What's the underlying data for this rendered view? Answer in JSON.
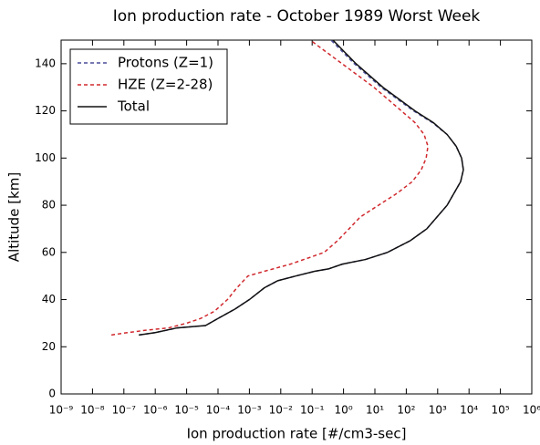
{
  "chart_data": {
    "type": "line",
    "title": "Ion production rate - October 1989 Worst Week",
    "x_label": "Ion production rate [#/cm3-sec]",
    "y_label": "Altitude [km]",
    "x_scale": "log",
    "xlim": [
      1e-09,
      1000000.0
    ],
    "xticks": [
      {
        "value": 1e-09,
        "label": "10⁻⁹"
      },
      {
        "value": 1e-08,
        "label": "10⁻⁸"
      },
      {
        "value": 1e-07,
        "label": "10⁻⁷"
      },
      {
        "value": 1e-06,
        "label": "10⁻⁶"
      },
      {
        "value": 1e-05,
        "label": "10⁻⁵"
      },
      {
        "value": 0.0001,
        "label": "10⁻⁴"
      },
      {
        "value": 0.001,
        "label": "10⁻³"
      },
      {
        "value": 0.01,
        "label": "10⁻²"
      },
      {
        "value": 0.1,
        "label": "10⁻¹"
      },
      {
        "value": 1,
        "label": "10⁰"
      },
      {
        "value": 10,
        "label": "10¹"
      },
      {
        "value": 100,
        "label": "10²"
      },
      {
        "value": 1000,
        "label": "10³"
      },
      {
        "value": 10000,
        "label": "10⁴"
      },
      {
        "value": 100000,
        "label": "10⁵"
      },
      {
        "value": 1000000,
        "label": "10⁶"
      }
    ],
    "ylim": [
      0,
      150
    ],
    "yticks": [
      0,
      20,
      40,
      60,
      80,
      100,
      120,
      140
    ],
    "legend": "upper left",
    "series": [
      {
        "name": "Protons (Z=1)",
        "color": "#4a4f9a",
        "linestyle": "dashed",
        "x": [
          3e-07,
          1e-06,
          5e-06,
          4e-05,
          0.0001,
          0.00035,
          0.001,
          0.003,
          0.008,
          0.03,
          0.12,
          0.33,
          0.9,
          5,
          25,
          135,
          450,
          2000,
          5400,
          6600,
          5800,
          3900,
          2000,
          680,
          170,
          16,
          2.2,
          0.4
        ],
        "values": [
          25,
          26,
          28,
          29,
          32,
          36,
          40,
          45,
          48,
          50,
          52,
          53,
          55,
          57,
          60,
          65,
          70,
          80,
          90,
          95,
          100,
          105,
          110,
          115,
          120,
          130,
          140,
          150
        ]
      },
      {
        "name": "HZE (Z=2-28)",
        "color": "#d0282d",
        "linestyle": "dashed",
        "x": [
          4e-08,
          1.3e-07,
          5e-07,
          2.7e-06,
          1e-05,
          2.8e-05,
          7.6e-05,
          0.0002,
          0.0004,
          0.0009,
          0.003,
          0.02,
          0.09,
          0.24,
          0.65,
          1.5,
          3.4,
          13,
          50,
          155,
          300,
          430,
          490,
          370,
          190,
          70,
          9.3,
          0.9,
          0.087
        ],
        "values": [
          25,
          26,
          27,
          28,
          30,
          32,
          35,
          40,
          45,
          50,
          52,
          55,
          58,
          60,
          65,
          70,
          75,
          80,
          85,
          90,
          95,
          100,
          105,
          110,
          115,
          120,
          130,
          140,
          150
        ]
      },
      {
        "name": "Total",
        "color": "#111111",
        "linestyle": "solid",
        "x": [
          3e-07,
          1e-06,
          5e-06,
          4e-05,
          0.0001,
          0.00035,
          0.001,
          0.003,
          0.008,
          0.03,
          0.12,
          0.33,
          0.9,
          5,
          25,
          135,
          450,
          2000,
          5400,
          6600,
          5800,
          3900,
          2000,
          730,
          190,
          18,
          2.5,
          0.46
        ],
        "values": [
          25,
          26,
          28,
          29,
          32,
          36,
          40,
          45,
          48,
          50,
          52,
          53,
          55,
          57,
          60,
          65,
          70,
          80,
          90,
          95,
          100,
          105,
          110,
          115,
          120,
          130,
          140,
          150
        ]
      }
    ]
  }
}
